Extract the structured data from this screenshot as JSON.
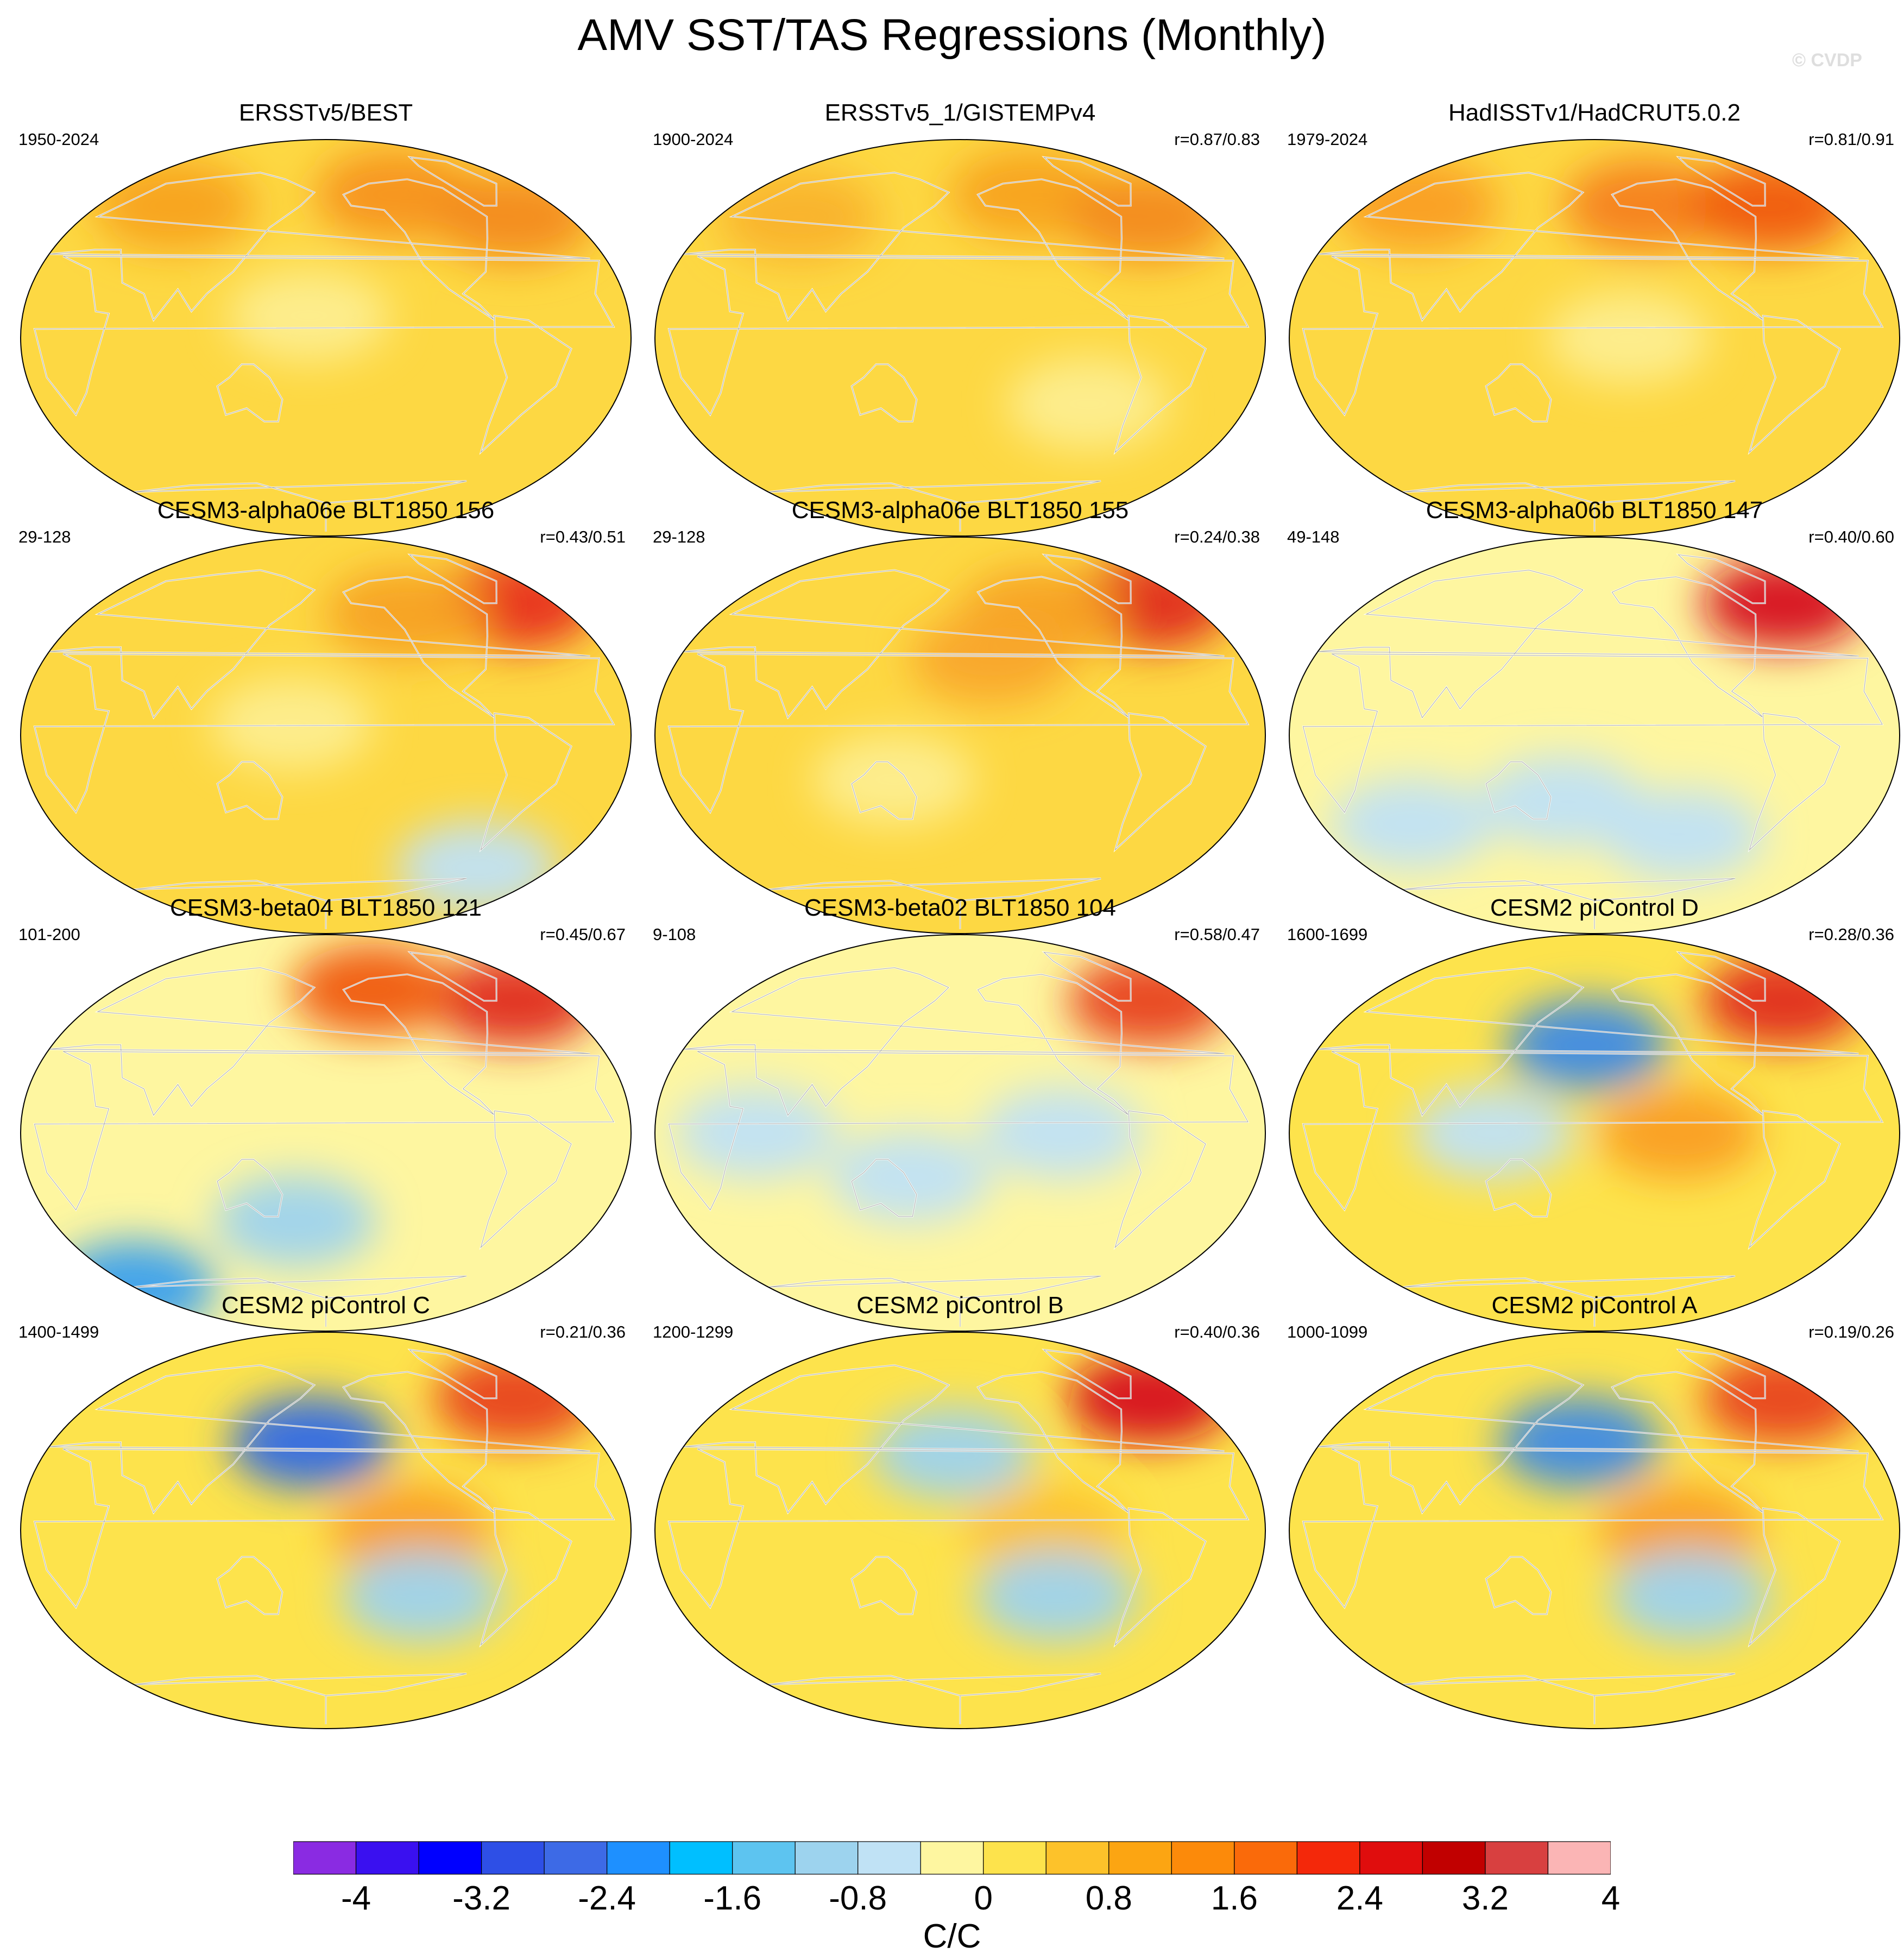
{
  "title": "AMV SST/TAS Regressions (Monthly)",
  "watermark": "© CVDP",
  "colorbar": {
    "units": "C/C",
    "tick_labels": [
      "-4",
      "-3.2",
      "-2.4",
      "-1.6",
      "-0.8",
      "0",
      "0.8",
      "1.6",
      "2.4",
      "3.2",
      "4"
    ],
    "colors": [
      "#8a2be2",
      "#3a10f0",
      "#0000ff",
      "#2e4fe6",
      "#3d6ae6",
      "#1e90ff",
      "#00bfff",
      "#5dc4f0",
      "#9dd3ee",
      "#c0e2f5",
      "#fef6a0",
      "#fde34c",
      "#fdc22a",
      "#fca512",
      "#fc8a0a",
      "#fa6a0a",
      "#f4280a",
      "#e00d0d",
      "#c10000",
      "#d84040",
      "#fbb5b5"
    ]
  },
  "panels": [
    {
      "title": "ERSSTv5/BEST",
      "years": "1950-2024",
      "corr": "",
      "base": "#fdd843",
      "blobs": [
        {
          "lon": -120,
          "lat": 65,
          "v": "#f7921e"
        },
        {
          "lon": 60,
          "lat": 60,
          "v": "#f8a21e"
        },
        {
          "lon": -40,
          "lat": 55,
          "v": "#f38a1c"
        },
        {
          "lon": 170,
          "lat": 10,
          "v": "#fdee90"
        }
      ]
    },
    {
      "title": "ERSSTv5_1/GISTEMPv4",
      "years": "1900-2024",
      "corr": "r=0.87/0.83",
      "base": "#fdd843",
      "blobs": [
        {
          "lon": -120,
          "lat": 65,
          "v": "#f8a21e"
        },
        {
          "lon": 60,
          "lat": 55,
          "v": "#f9b22a"
        },
        {
          "lon": -40,
          "lat": 55,
          "v": "#f38a1c"
        },
        {
          "lon": -100,
          "lat": -30,
          "v": "#fdee90"
        }
      ]
    },
    {
      "title": "HadISSTv1/HadCRUT5.0.2",
      "years": "1979-2024",
      "corr": "r=0.81/0.91",
      "base": "#fdd843",
      "blobs": [
        {
          "lon": -140,
          "lat": 60,
          "v": "#f57f1c"
        },
        {
          "lon": -40,
          "lat": 60,
          "v": "#f05a10"
        },
        {
          "lon": 40,
          "lat": 60,
          "v": "#fa9e22"
        },
        {
          "lon": -160,
          "lat": 0,
          "v": "#fdee90"
        }
      ]
    },
    {
      "title": "CESM3-alpha06e BLT1850 156",
      "years": "29-128",
      "corr": "r=0.43/0.51",
      "base": "#fdd843",
      "blobs": [
        {
          "lon": -30,
          "lat": 60,
          "v": "#e8301a"
        },
        {
          "lon": -120,
          "lat": 55,
          "v": "#f7a122"
        },
        {
          "lon": 160,
          "lat": 5,
          "v": "#fdee90"
        },
        {
          "lon": -60,
          "lat": -60,
          "v": "#c0e2f5"
        }
      ]
    },
    {
      "title": "CESM3-alpha06e BLT1850 155",
      "years": "29-128",
      "corr": "r=0.24/0.38",
      "base": "#fdd843",
      "blobs": [
        {
          "lon": -30,
          "lat": 60,
          "v": "#e02c1a"
        },
        {
          "lon": -120,
          "lat": 55,
          "v": "#f7a122"
        },
        {
          "lon": -160,
          "lat": 35,
          "v": "#f9a72a"
        },
        {
          "lon": 140,
          "lat": -20,
          "v": "#fdee90"
        }
      ]
    },
    {
      "title": "CESM3-alpha06b BLT1850 147",
      "years": "49-148",
      "corr": "r=0.40/0.60",
      "base": "#fef6a0",
      "blobs": [
        {
          "lon": -30,
          "lat": 60,
          "v": "#d6101a"
        },
        {
          "lon": 160,
          "lat": -30,
          "v": "#c0e2f5"
        },
        {
          "lon": -120,
          "lat": -45,
          "v": "#c0e2f5"
        },
        {
          "lon": 60,
          "lat": -40,
          "v": "#c0e2f5"
        }
      ]
    },
    {
      "title": "CESM3-beta04 BLT1850 121",
      "years": "101-200",
      "corr": "r=0.45/0.67",
      "base": "#fef6a0",
      "blobs": [
        {
          "lon": -30,
          "lat": 60,
          "v": "#e02c1a"
        },
        {
          "lon": -140,
          "lat": 65,
          "v": "#f05a10"
        },
        {
          "lon": 160,
          "lat": -40,
          "v": "#9dd3ee"
        },
        {
          "lon": 0,
          "lat": -70,
          "v": "#3aa0ee"
        }
      ]
    },
    {
      "title": "CESM3-beta02 BLT1850 104",
      "years": "9-108",
      "corr": "r=0.58/0.47",
      "base": "#fef6a0",
      "blobs": [
        {
          "lon": -30,
          "lat": 60,
          "v": "#e8401a"
        },
        {
          "lon": 150,
          "lat": -20,
          "v": "#c0e2f5"
        },
        {
          "lon": -120,
          "lat": 0,
          "v": "#c0e2f5"
        },
        {
          "lon": 60,
          "lat": 0,
          "v": "#c0e2f5"
        }
      ]
    },
    {
      "title": "CESM2 piControl D",
      "years": "1600-1699",
      "corr": "r=0.28/0.36",
      "base": "#fde34c",
      "blobs": [
        {
          "lon": -30,
          "lat": 60,
          "v": "#e02c1a"
        },
        {
          "lon": 175,
          "lat": 40,
          "v": "#3d8ae6"
        },
        {
          "lon": -130,
          "lat": 0,
          "v": "#fa9e22"
        },
        {
          "lon": 120,
          "lat": 0,
          "v": "#c0e2f5"
        }
      ]
    },
    {
      "title": "CESM2 piControl C",
      "years": "1400-1499",
      "corr": "r=0.21/0.36",
      "base": "#fde34c",
      "blobs": [
        {
          "lon": -30,
          "lat": 60,
          "v": "#e8401a"
        },
        {
          "lon": 170,
          "lat": 40,
          "v": "#2e6ae6"
        },
        {
          "lon": -130,
          "lat": 0,
          "v": "#fa9e22"
        },
        {
          "lon": -120,
          "lat": -30,
          "v": "#9dd3ee"
        }
      ]
    },
    {
      "title": "CESM2 piControl B",
      "years": "1200-1299",
      "corr": "r=0.40/0.36",
      "base": "#fde34c",
      "blobs": [
        {
          "lon": -30,
          "lat": 60,
          "v": "#d6101a"
        },
        {
          "lon": 175,
          "lat": 35,
          "v": "#9dd3ee"
        },
        {
          "lon": -130,
          "lat": 0,
          "v": "#fdc22a"
        },
        {
          "lon": -120,
          "lat": -30,
          "v": "#9dd3ee"
        }
      ]
    },
    {
      "title": "CESM2 piControl A",
      "years": "1000-1099",
      "corr": "r=0.19/0.26",
      "base": "#fde34c",
      "blobs": [
        {
          "lon": -30,
          "lat": 60,
          "v": "#e8401a"
        },
        {
          "lon": 170,
          "lat": 40,
          "v": "#3d8ae6"
        },
        {
          "lon": -130,
          "lat": 0,
          "v": "#fa9e22"
        },
        {
          "lon": -120,
          "lat": -30,
          "v": "#9dd3ee"
        }
      ]
    }
  ]
}
